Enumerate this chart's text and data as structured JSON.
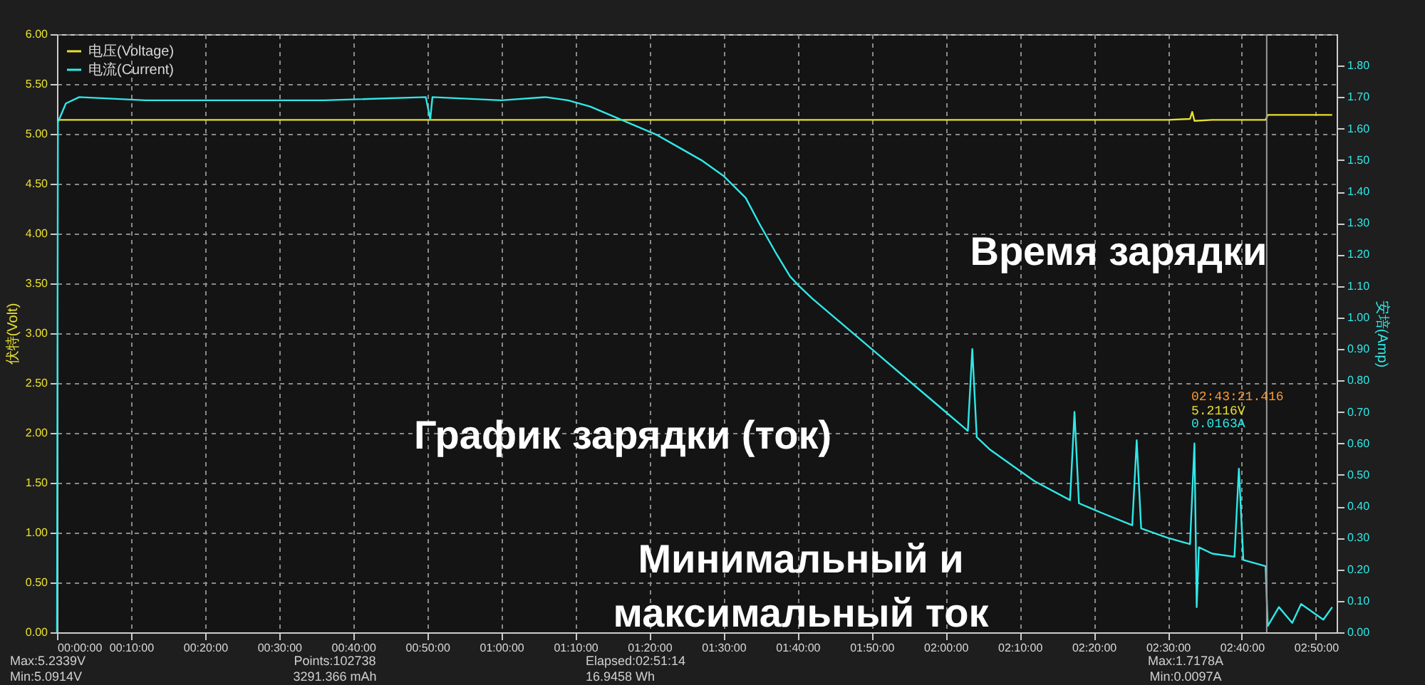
{
  "chart_data": {
    "type": "line",
    "ylabel": "伏特(Volt)",
    "y2label": "安培(Amp)",
    "xlim": [
      0,
      2.88
    ],
    "ylim": [
      0,
      6
    ],
    "y2lim": [
      0,
      1.9
    ],
    "xticks": [
      {
        "value": 0,
        "label": "00:00:00"
      },
      {
        "value": 0.16667,
        "label": "00:10:00"
      },
      {
        "value": 0.33333,
        "label": "00:20:00"
      },
      {
        "value": 0.5,
        "label": "00:30:00"
      },
      {
        "value": 0.66667,
        "label": "00:40:00"
      },
      {
        "value": 0.83333,
        "label": "00:50:00"
      },
      {
        "value": 1,
        "label": "01:00:00"
      },
      {
        "value": 1.16667,
        "label": "01:10:00"
      },
      {
        "value": 1.33333,
        "label": "01:20:00"
      },
      {
        "value": 1.5,
        "label": "01:30:00"
      },
      {
        "value": 1.66667,
        "label": "01:40:00"
      },
      {
        "value": 1.83333,
        "label": "01:50:00"
      },
      {
        "value": 2,
        "label": "02:00:00"
      },
      {
        "value": 2.16667,
        "label": "02:10:00"
      },
      {
        "value": 2.33333,
        "label": "02:20:00"
      },
      {
        "value": 2.5,
        "label": "02:30:00"
      },
      {
        "value": 2.66667,
        "label": "02:40:00"
      },
      {
        "value": 2.83333,
        "label": "02:50:00"
      }
    ],
    "yticks": [
      {
        "value": 0,
        "label": "0.00"
      },
      {
        "value": 0.5,
        "label": "0.50"
      },
      {
        "value": 1,
        "label": "1.00"
      },
      {
        "value": 1.5,
        "label": "1.50"
      },
      {
        "value": 2,
        "label": "2.00"
      },
      {
        "value": 2.5,
        "label": "2.50"
      },
      {
        "value": 3,
        "label": "3.00"
      },
      {
        "value": 3.5,
        "label": "3.50"
      },
      {
        "value": 4,
        "label": "4.00"
      },
      {
        "value": 4.5,
        "label": "4.50"
      },
      {
        "value": 5,
        "label": "5.00"
      },
      {
        "value": 5.5,
        "label": "5.50"
      },
      {
        "value": 6,
        "label": "6.00"
      }
    ],
    "y2ticks": [
      {
        "value": 0,
        "label": "0.00"
      },
      {
        "value": 0.1,
        "label": "0.10"
      },
      {
        "value": 0.2,
        "label": "0.20"
      },
      {
        "value": 0.3,
        "label": "0.30"
      },
      {
        "value": 0.4,
        "label": "0.40"
      },
      {
        "value": 0.5,
        "label": "0.50"
      },
      {
        "value": 0.6,
        "label": "0.60"
      },
      {
        "value": 0.7,
        "label": "0.70"
      },
      {
        "value": 0.8,
        "label": "0.80"
      },
      {
        "value": 0.9,
        "label": "0.90"
      },
      {
        "value": 1,
        "label": "1.00"
      },
      {
        "value": 1.1,
        "label": "1.10"
      },
      {
        "value": 1.2,
        "label": "1.20"
      },
      {
        "value": 1.3,
        "label": "1.30"
      },
      {
        "value": 1.4,
        "label": "1.40"
      },
      {
        "value": 1.5,
        "label": "1.50"
      },
      {
        "value": 1.6,
        "label": "1.60"
      },
      {
        "value": 1.7,
        "label": "1.70"
      },
      {
        "value": 1.8,
        "label": "1.80"
      }
    ],
    "grid": true,
    "legend": "top left",
    "line_style": "solid",
    "series": [
      {
        "name": "电压(Voltage)",
        "color": "#e8e030",
        "axis": "y",
        "x": [
          0,
          0.5,
          1,
          1.5,
          2,
          2.25,
          2.5,
          2.55,
          2.555,
          2.56,
          2.6,
          2.72,
          2.725,
          2.8,
          2.87
        ],
        "values": [
          5.14,
          5.14,
          5.14,
          5.14,
          5.14,
          5.14,
          5.14,
          5.15,
          5.22,
          5.13,
          5.14,
          5.14,
          5.19,
          5.19,
          5.19
        ]
      },
      {
        "name": "电流(Current)",
        "color": "#30e8e8",
        "axis": "y2",
        "x": [
          0,
          0.002,
          0.02,
          0.05,
          0.2,
          0.4,
          0.6,
          0.83,
          0.84,
          0.845,
          1,
          1.1,
          1.15,
          1.2,
          1.25,
          1.3,
          1.35,
          1.4,
          1.45,
          1.5,
          1.55,
          1.58,
          1.62,
          1.65,
          1.67,
          1.7,
          1.75,
          1.8,
          1.85,
          1.9,
          1.95,
          2,
          2.05,
          2.06,
          2.07,
          2.1,
          2.15,
          2.2,
          2.28,
          2.29,
          2.3,
          2.35,
          2.42,
          2.43,
          2.44,
          2.5,
          2.55,
          2.56,
          2.565,
          2.57,
          2.6,
          2.65,
          2.66,
          2.67,
          2.72,
          2.725,
          2.75,
          2.78,
          2.8,
          2.85,
          2.87
        ],
        "values": [
          0,
          1.62,
          1.68,
          1.7,
          1.69,
          1.69,
          1.69,
          1.7,
          1.63,
          1.7,
          1.69,
          1.7,
          1.69,
          1.67,
          1.64,
          1.61,
          1.58,
          1.54,
          1.5,
          1.45,
          1.38,
          1.3,
          1.2,
          1.13,
          1.1,
          1.06,
          1,
          0.94,
          0.88,
          0.82,
          0.76,
          0.7,
          0.64,
          0.9,
          0.62,
          0.58,
          0.53,
          0.48,
          0.42,
          0.7,
          0.41,
          0.38,
          0.34,
          0.61,
          0.33,
          0.3,
          0.28,
          0.6,
          0.08,
          0.27,
          0.25,
          0.24,
          0.52,
          0.23,
          0.21,
          0.02,
          0.08,
          0.03,
          0.09,
          0.04,
          0.08
        ]
      }
    ],
    "ref_lines": [
      {
        "axis": "x",
        "value": 2.7226,
        "color": "#9a9a9a"
      }
    ],
    "annotations": [
      "Время зарядки",
      "График зарядки (ток)",
      "Минимальный и\nмаксимальный ток",
      "02:43:21.416",
      "5.2116V",
      "0.0163A",
      "Max:5.2339V",
      "Min:5.0914V",
      "Points:102738",
      "3291.366 mAh",
      "Elapsed:02:51:14",
      "16.9458 Wh",
      "Max:1.7178A",
      "Min:0.0097A"
    ]
  }
}
